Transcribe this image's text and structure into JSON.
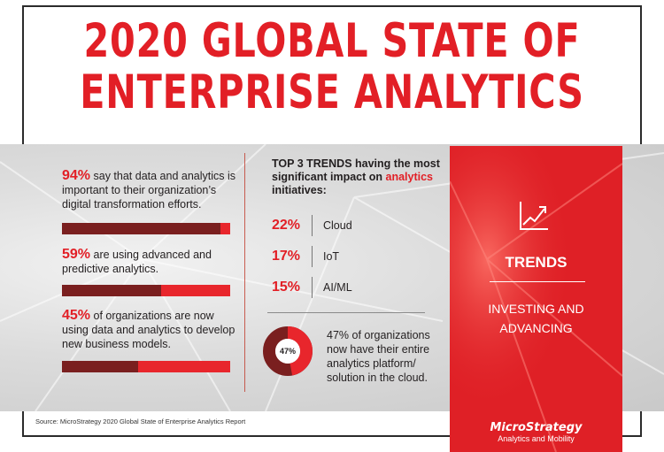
{
  "title": {
    "line1": "2020 GLOBAL STATE OF",
    "line2": "ENTERPRISE ANALYTICS"
  },
  "stats": [
    {
      "pct": "94%",
      "text": " say that data and analytics is important to their organization’s digital transformation efforts.",
      "value": 94
    },
    {
      "pct": "59%",
      "text": " are using advanced and predictive analytics.",
      "value": 59
    },
    {
      "pct": "45%",
      "text": " of organizations are now using data and analytics to develop new business models.",
      "value": 45
    }
  ],
  "trends": {
    "heading_bold": "TOP 3 TRENDS",
    "heading_rest": " having the most significant impact on ",
    "heading_red": "analytics",
    "heading_end": " initiatives:",
    "items": [
      {
        "pct": "22%",
        "label": "Cloud"
      },
      {
        "pct": "17%",
        "label": "IoT"
      },
      {
        "pct": "15%",
        "label": "AI/ML"
      }
    ]
  },
  "cloud": {
    "pct_label": "47%",
    "value": 47,
    "text": "47% of organizations now have their entire analytics platform/ solution in the cloud."
  },
  "panel": {
    "title": "TRENDS",
    "subtitle_line1": "INVESTING AND",
    "subtitle_line2": "ADVANCING",
    "icon": "trend-up-chart-icon"
  },
  "logo": {
    "brand": "MicroStrategy",
    "tagline": "Analytics and Mobility"
  },
  "source": "Source: MicroStrategy 2020 Global State of Enterprise Analytics Report",
  "colors": {
    "red": "#e21f26",
    "dark_red": "#7a1f1f",
    "bar_red": "#e8262c",
    "panel_red": "#df2026"
  }
}
